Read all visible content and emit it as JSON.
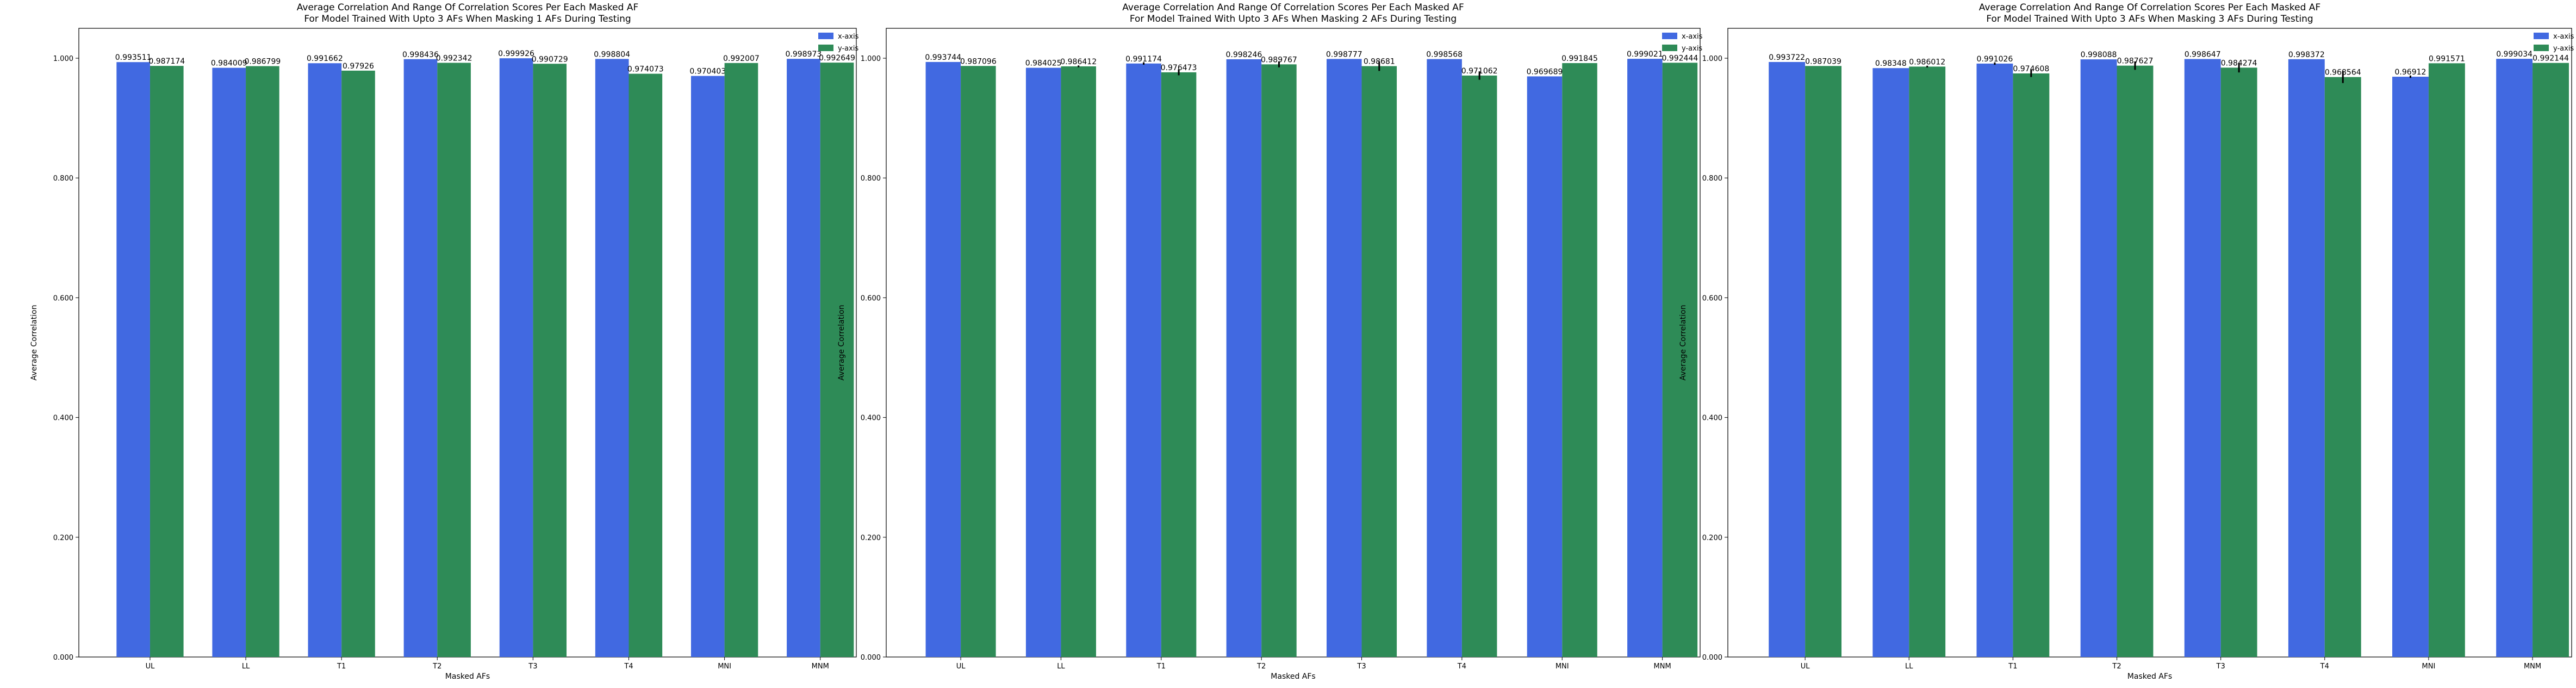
{
  "colors": {
    "x_axis": "#4169E1",
    "y_axis": "#2E8B57",
    "error_bar": "#000000"
  },
  "chart_data": [
    {
      "type": "bar",
      "title": "Average Correlation And Range Of Correlation Scores Per Each Masked AF",
      "subtitle": "For Model Trained With Upto 3 AFs When Masking 1 AFs During Testing",
      "xlabel": "Masked AFs",
      "ylabel": "Average Correlation",
      "ylim": [
        0,
        1.05
      ],
      "yticks": [
        "0.000",
        "0.200",
        "0.400",
        "0.600",
        "0.800",
        "1.000"
      ],
      "legend_position": "top-right",
      "grid": false,
      "categories": [
        "UL",
        "LL",
        "T1",
        "T2",
        "T3",
        "T4",
        "MNI",
        "MNM"
      ],
      "series": [
        {
          "name": "x-axis",
          "color_key": "x_axis",
          "values": [
            0.993511,
            0.984009,
            0.991662,
            0.998436,
            0.999926,
            0.998804,
            0.970403,
            0.998973
          ],
          "labels": [
            "0.993511",
            "0.984009",
            "0.991662",
            "0.998436",
            "0.999926",
            "0.998804",
            "0.970403",
            "0.998973"
          ],
          "error": [
            0,
            0,
            0,
            0,
            0,
            0,
            0,
            0
          ]
        },
        {
          "name": "y-axis",
          "color_key": "y_axis",
          "values": [
            0.987174,
            0.986799,
            0.97926,
            0.992342,
            0.990729,
            0.974073,
            0.992007,
            0.992649
          ],
          "labels": [
            "0.987174",
            "0.986799",
            "0.97926",
            "0.992342",
            "0.990729",
            "0.974073",
            "0.992007",
            "0.992649"
          ],
          "error": [
            0,
            0,
            0,
            0,
            0,
            0,
            0,
            0
          ]
        }
      ]
    },
    {
      "type": "bar",
      "title": "Average Correlation And Range Of Correlation Scores Per Each Masked AF",
      "subtitle": "For Model Trained With Upto 3 AFs When Masking 2 AFs During Testing",
      "xlabel": "Masked AFs",
      "ylabel": "Average Correlation",
      "ylim": [
        0,
        1.05
      ],
      "yticks": [
        "0.000",
        "0.200",
        "0.400",
        "0.600",
        "0.800",
        "1.000"
      ],
      "legend_position": "top-right",
      "grid": false,
      "categories": [
        "UL",
        "LL",
        "T1",
        "T2",
        "T3",
        "T4",
        "MNI",
        "MNM"
      ],
      "series": [
        {
          "name": "x-axis",
          "color_key": "x_axis",
          "values": [
            0.993744,
            0.984025,
            0.991174,
            0.998246,
            0.998777,
            0.998568,
            0.969689,
            0.999021
          ],
          "labels": [
            "0.993744",
            "0.984025",
            "0.991174",
            "0.998246",
            "0.998777",
            "0.998568",
            "0.969689",
            "0.999021"
          ],
          "error": [
            0,
            0,
            0.004,
            0,
            0,
            0,
            0,
            0
          ]
        },
        {
          "name": "y-axis",
          "color_key": "y_axis",
          "values": [
            0.987096,
            0.986412,
            0.976473,
            0.989767,
            0.98681,
            0.971062,
            0.991845,
            0.992444
          ],
          "labels": [
            "0.987096",
            "0.986412",
            "0.976473",
            "0.989767",
            "0.98681",
            "0.971062",
            "0.991845",
            "0.992444"
          ],
          "error": [
            0,
            0.003,
            0.01,
            0.01,
            0.016,
            0.014,
            0,
            0
          ]
        }
      ]
    },
    {
      "type": "bar",
      "title": "Average Correlation And Range Of Correlation Scores Per Each Masked AF",
      "subtitle": "For Model Trained With Upto 3 AFs When Masking 3 AFs During Testing",
      "xlabel": "Masked AFs",
      "ylabel": "Average Correlation",
      "ylim": [
        0,
        1.05
      ],
      "yticks": [
        "0.000",
        "0.200",
        "0.400",
        "0.600",
        "0.800",
        "1.000"
      ],
      "legend_position": "top-right",
      "grid": false,
      "categories": [
        "UL",
        "LL",
        "T1",
        "T2",
        "T3",
        "T4",
        "MNI",
        "MNM"
      ],
      "series": [
        {
          "name": "x-axis",
          "color_key": "x_axis",
          "values": [
            0.993722,
            0.98348,
            0.991026,
            0.998088,
            0.998647,
            0.998372,
            0.96912,
            0.999034
          ],
          "labels": [
            "0.993722",
            "0.98348",
            "0.991026",
            "0.998088",
            "0.998647",
            "0.998372",
            "0.96912",
            "0.999034"
          ],
          "error": [
            0,
            0,
            0.004,
            0,
            0,
            0,
            0.004,
            0
          ]
        },
        {
          "name": "y-axis",
          "color_key": "y_axis",
          "values": [
            0.987039,
            0.986012,
            0.974608,
            0.987627,
            0.984274,
            0.968564,
            0.991571,
            0.992144
          ],
          "labels": [
            "0.987039",
            "0.986012",
            "0.974608",
            "0.987627",
            "0.984274",
            "0.968564",
            "0.991571",
            "0.992144"
          ],
          "error": [
            0,
            0.003,
            0.012,
            0.014,
            0.016,
            0.02,
            0,
            0
          ]
        }
      ]
    }
  ]
}
